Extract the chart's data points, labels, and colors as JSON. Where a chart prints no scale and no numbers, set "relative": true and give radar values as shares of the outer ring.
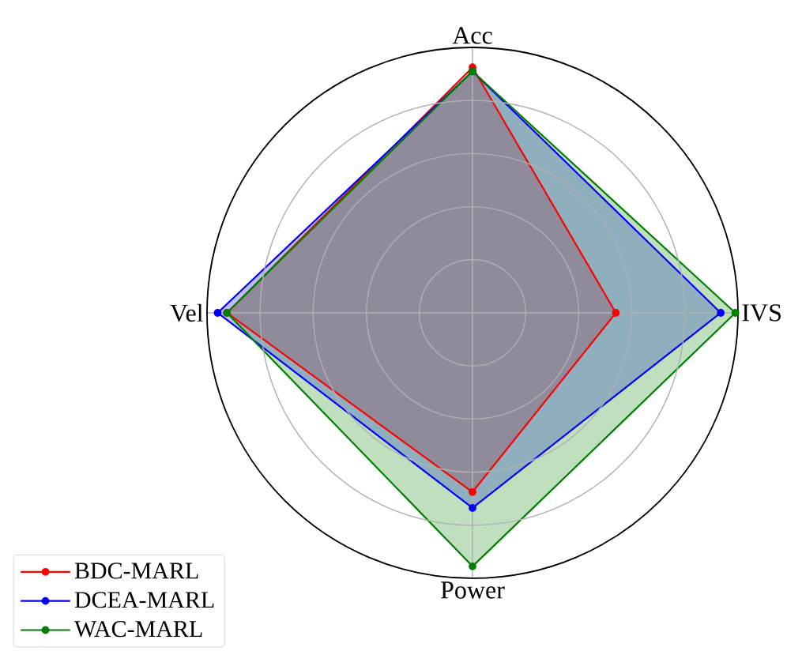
{
  "chart_data": {
    "type": "radar",
    "relative": true,
    "categories": [
      "Acc",
      "IVS",
      "Power",
      "Vel"
    ],
    "series": [
      {
        "name": "BDC-MARL",
        "color": "#ff0000",
        "values": [
          0.925,
          0.54,
          0.675,
          0.925
        ]
      },
      {
        "name": "DCEA-MARL",
        "color": "#0000ff",
        "values": [
          0.91,
          0.935,
          0.735,
          0.96
        ]
      },
      {
        "name": "WAC-MARL",
        "color": "#008000",
        "values": [
          0.91,
          0.99,
          0.955,
          0.925
        ]
      }
    ],
    "grid": true,
    "legend": "bottom left",
    "marker": "circle",
    "line_style": "solid"
  }
}
